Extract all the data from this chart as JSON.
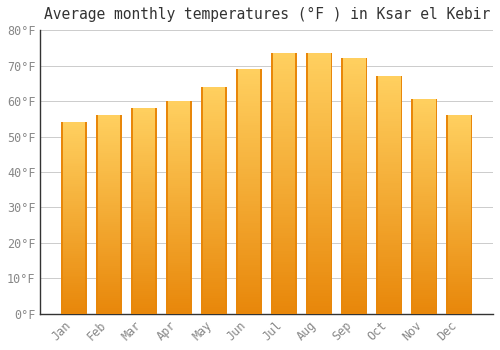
{
  "title": "Average monthly temperatures (°F ) in Ksar el Kebir",
  "months": [
    "Jan",
    "Feb",
    "Mar",
    "Apr",
    "May",
    "Jun",
    "Jul",
    "Aug",
    "Sep",
    "Oct",
    "Nov",
    "Dec"
  ],
  "values": [
    54,
    56,
    58,
    60,
    64,
    69,
    73.5,
    73.5,
    72,
    67,
    60.5,
    56
  ],
  "bar_color": "#FFA500",
  "bar_color_light": "#FFD080",
  "bar_color_dark": "#E8870A",
  "background_color": "#FFFFFF",
  "grid_color": "#CCCCCC",
  "ylim": [
    0,
    80
  ],
  "yticks": [
    0,
    10,
    20,
    30,
    40,
    50,
    60,
    70,
    80
  ],
  "title_fontsize": 10.5,
  "tick_fontsize": 8.5
}
